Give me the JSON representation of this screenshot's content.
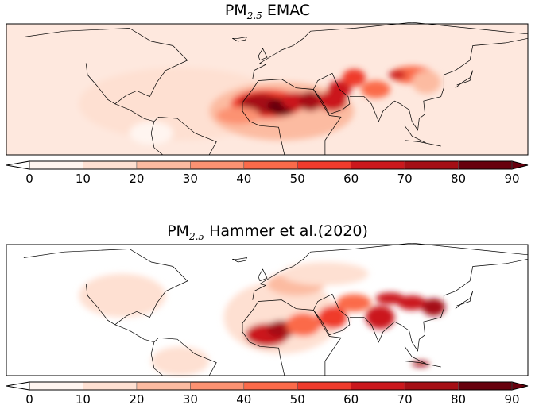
{
  "panels": [
    {
      "title_main": "PM",
      "title_sub": "2.5",
      "title_rest": " EMAC",
      "ocean_color": "#fee8de"
    },
    {
      "title_main": "PM",
      "title_sub": "2.5",
      "title_rest": " Hammer et al.(2020)",
      "ocean_color": "#ffffff"
    }
  ],
  "colorbar": {
    "ticks": [
      "0",
      "10",
      "20",
      "30",
      "40",
      "50",
      "60",
      "70",
      "80",
      "90"
    ],
    "range": [
      0,
      90
    ],
    "extend": "both",
    "colors": [
      "#fff5f0",
      "#fee0d2",
      "#fcbba1",
      "#fc9272",
      "#fb6a4a",
      "#ef3b2c",
      "#cb181d",
      "#a50f15",
      "#67000d"
    ]
  }
}
